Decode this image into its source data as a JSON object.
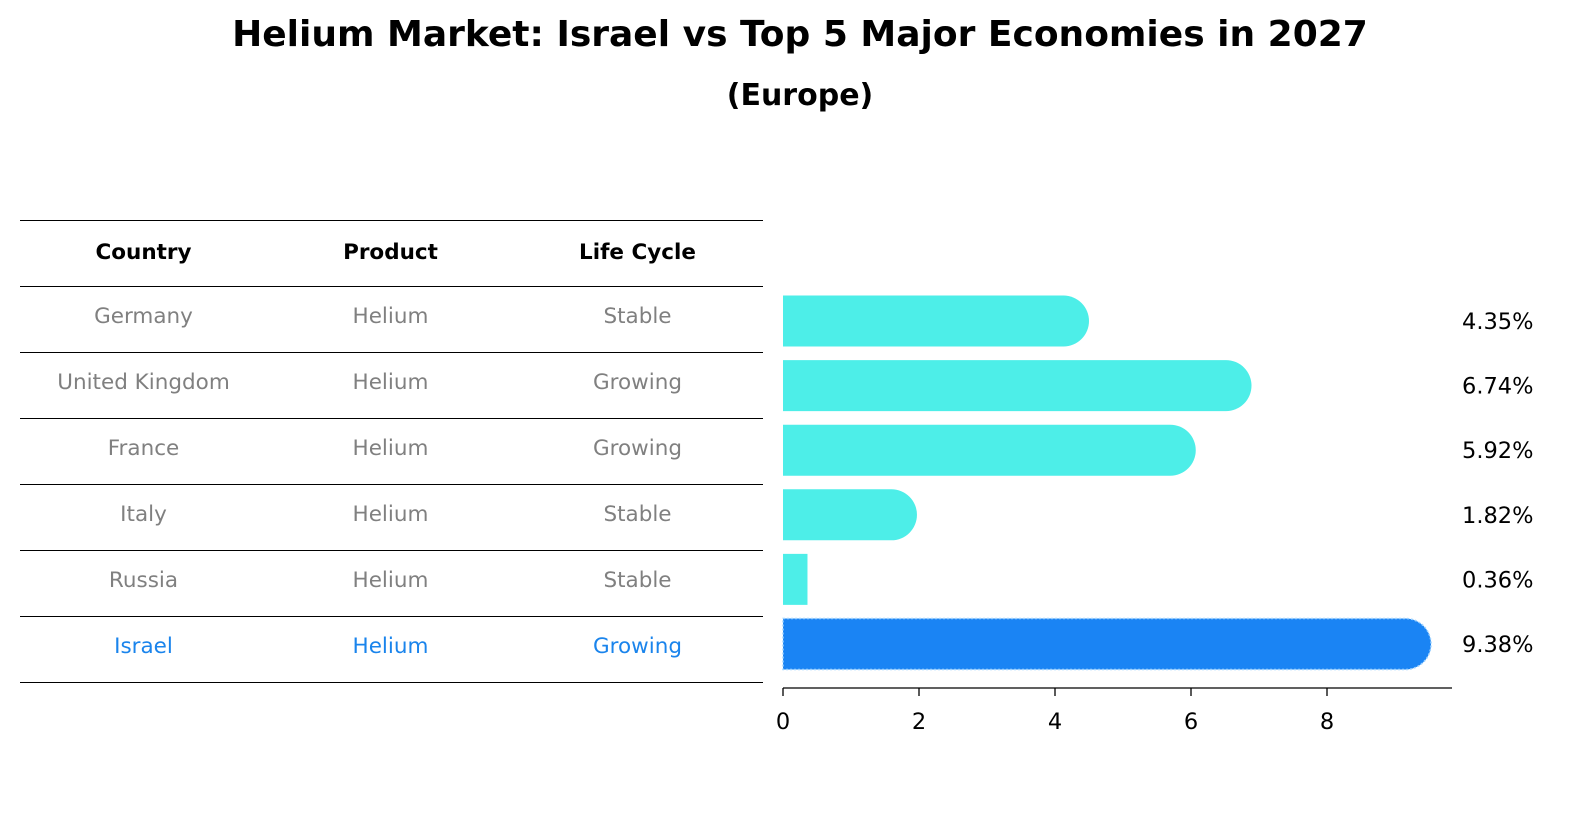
{
  "title": "Helium Market: Israel vs Top 5 Major Economies in 2027",
  "subtitle": "(Europe)",
  "colors": {
    "bar": "#4deee8",
    "highlight": "#1a84f4",
    "highlight_text": "#1a84ec",
    "row_text": "#808080"
  },
  "table": {
    "headers": [
      "Country",
      "Product",
      "Life Cycle"
    ],
    "rows": [
      [
        "Germany",
        "Helium",
        "Stable"
      ],
      [
        "United Kingdom",
        "Helium",
        "Growing"
      ],
      [
        "France",
        "Helium",
        "Growing"
      ],
      [
        "Italy",
        "Helium",
        "Stable"
      ],
      [
        "Russia",
        "Helium",
        "Stable"
      ],
      [
        "Israel",
        "Helium",
        "Growing"
      ]
    ],
    "highlight_row": 5
  },
  "chart_data": {
    "type": "bar",
    "orientation": "horizontal",
    "categories": [
      "Germany",
      "United Kingdom",
      "France",
      "Italy",
      "Russia",
      "Israel"
    ],
    "values": [
      4.35,
      6.74,
      5.92,
      1.82,
      0.36,
      9.38
    ],
    "value_labels": [
      "4.35%",
      "6.74%",
      "5.92%",
      "1.82%",
      "0.36%",
      "9.38%"
    ],
    "highlight": "Israel",
    "xlim": [
      0,
      9.8
    ],
    "xticks": [
      0,
      2,
      4,
      6,
      8
    ],
    "xtick_labels": [
      "0",
      "2",
      "4",
      "6",
      "8"
    ],
    "title": "Helium Market: Israel vs Top 5 Major Economies in 2027",
    "subtitle": "(Europe)"
  }
}
